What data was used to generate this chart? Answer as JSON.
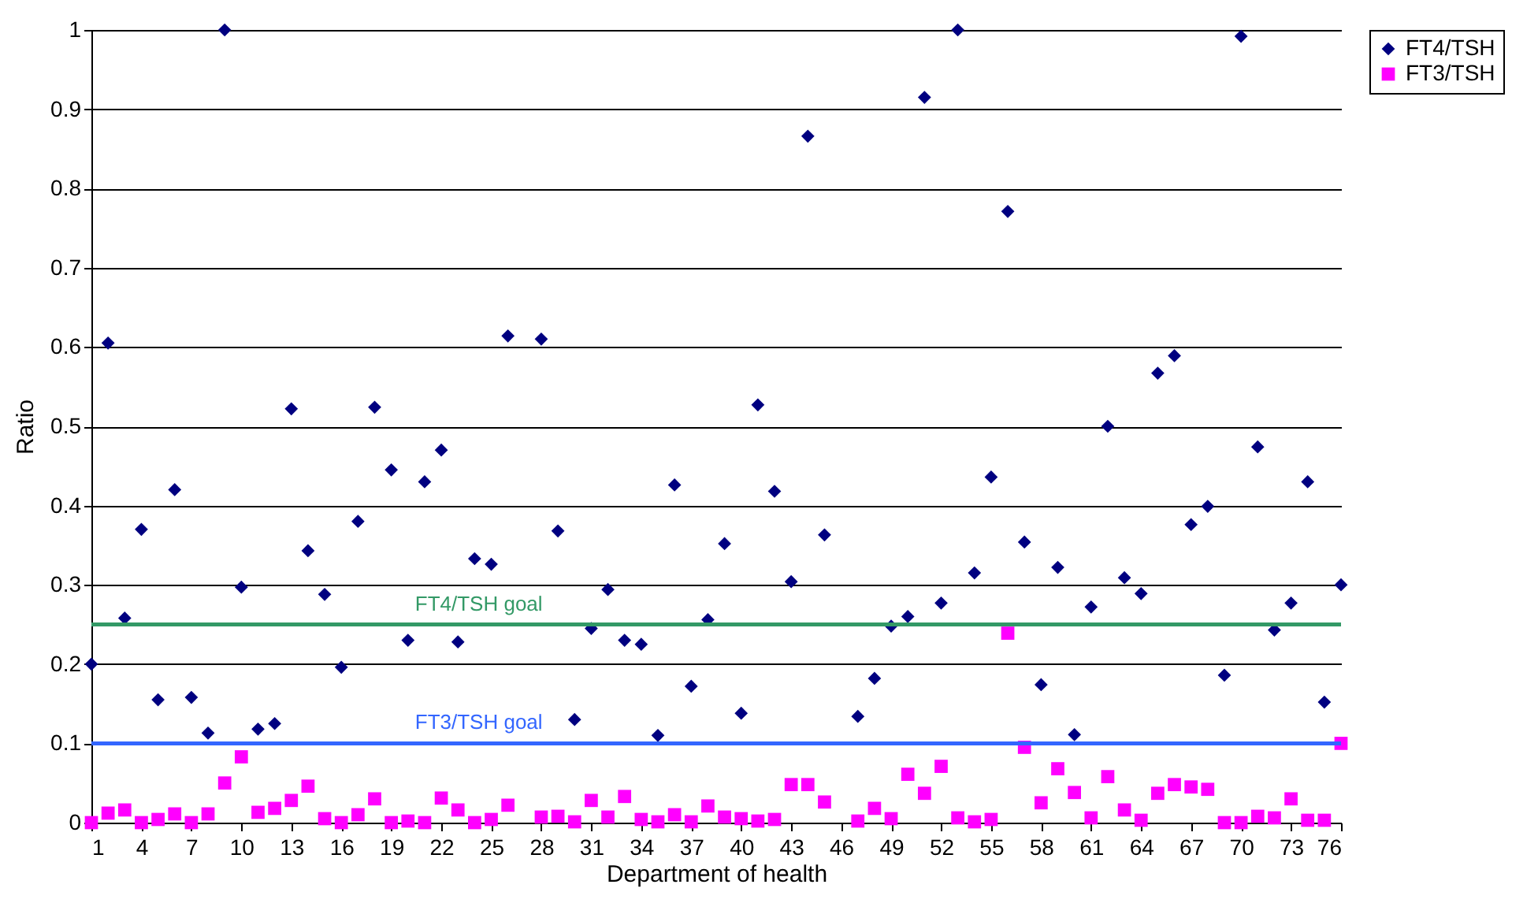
{
  "chart_data": {
    "type": "scatter",
    "xlabel": "Department of health",
    "ylabel": "Ratio",
    "x": [
      1,
      2,
      3,
      4,
      5,
      6,
      7,
      8,
      9,
      10,
      11,
      12,
      13,
      14,
      15,
      16,
      17,
      18,
      19,
      20,
      21,
      22,
      23,
      24,
      25,
      26,
      27,
      28,
      29,
      30,
      31,
      32,
      33,
      34,
      35,
      36,
      37,
      38,
      39,
      40,
      41,
      42,
      43,
      44,
      45,
      46,
      47,
      48,
      49,
      50,
      51,
      52,
      53,
      54,
      55,
      56,
      57,
      58,
      59,
      60,
      61,
      62,
      63,
      64,
      65,
      66,
      67,
      68,
      69,
      70,
      71,
      72,
      73,
      74,
      75,
      76
    ],
    "series": [
      {
        "name": "FT4/TSH",
        "color": "#000080",
        "marker": "diamond",
        "values": [
          0.2,
          0.605,
          0.258,
          0.37,
          0.155,
          0.42,
          0.158,
          0.113,
          1.0,
          0.297,
          0.118,
          0.125,
          0.522,
          0.343,
          0.288,
          0.196,
          0.38,
          0.524,
          0.445,
          0.23,
          0.43,
          0.47,
          0.228,
          0.333,
          0.326,
          0.614,
          null,
          0.61,
          0.368,
          0.13,
          0.245,
          0.294,
          0.23,
          0.225,
          0.11,
          0.426,
          0.172,
          0.256,
          0.352,
          0.138,
          0.527,
          0.418,
          0.304,
          0.866,
          0.363,
          null,
          0.134,
          0.182,
          0.248,
          0.26,
          0.915,
          0.277,
          1.0,
          0.315,
          0.436,
          0.771,
          0.354,
          0.174,
          0.322,
          0.111,
          0.272,
          0.5,
          0.309,
          0.289,
          0.567,
          0.589,
          0.376,
          0.399,
          0.186,
          0.992,
          0.474,
          0.243,
          0.277,
          0.43,
          0.152,
          0.3
        ]
      },
      {
        "name": "FT3/TSH",
        "color": "#ff00ff",
        "marker": "square",
        "values": [
          0,
          0.012,
          0.016,
          0,
          0.004,
          0.011,
          0,
          0.011,
          0.05,
          0.083,
          0.013,
          0.018,
          0.028,
          0.046,
          0.005,
          0,
          0.01,
          0.03,
          0,
          0.002,
          0,
          0.031,
          0.016,
          0,
          0.004,
          0.022,
          null,
          0.007,
          0.008,
          0.001,
          0.028,
          0.007,
          0.033,
          0.004,
          0.001,
          0.01,
          0.001,
          0.021,
          0.007,
          0.005,
          0.002,
          0.004,
          0.048,
          0.048,
          0.026,
          null,
          0.002,
          0.018,
          0.005,
          0.061,
          0.037,
          0.071,
          0.006,
          0.001,
          0.004,
          0.239,
          0.095,
          0.025,
          0.068,
          0.038,
          0.006,
          0.058,
          0.016,
          0.003,
          0.037,
          0.048,
          0.045,
          0.042,
          0,
          0,
          0.008,
          0.006,
          0.03,
          0.003,
          0.003,
          0.1
        ]
      }
    ],
    "xlim": [
      1,
      76
    ],
    "xticks": [
      1,
      4,
      7,
      10,
      13,
      16,
      19,
      22,
      25,
      28,
      31,
      34,
      37,
      40,
      43,
      46,
      49,
      52,
      55,
      58,
      61,
      64,
      67,
      70,
      73,
      76
    ],
    "ylim": [
      0,
      1
    ],
    "yticks": [
      0,
      0.1,
      0.2,
      0.3,
      0.4,
      0.5,
      0.6,
      0.7,
      0.8,
      0.9,
      1
    ],
    "grid": "y",
    "legend": "right",
    "ref_lines": [
      {
        "axis": "y",
        "value": 0.25,
        "label": "FT4/TSH goal",
        "color": "#339966"
      },
      {
        "axis": "y",
        "value": 0.1,
        "label": "FT3/TSH goal",
        "color": "#3366ff"
      }
    ]
  }
}
